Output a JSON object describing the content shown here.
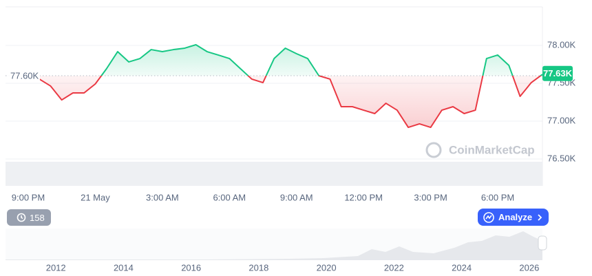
{
  "chart_data": [
    {
      "type": "line",
      "categories": [
        null,
        null,
        "9:00 PM",
        null,
        null,
        null,
        null,
        null,
        "21 May",
        null,
        null,
        null,
        null,
        null,
        "3:00 AM",
        null,
        null,
        null,
        null,
        null,
        "6:00 AM",
        null,
        null,
        null,
        null,
        null,
        "9:00 AM",
        null,
        null,
        null,
        null,
        null,
        "12:00 PM",
        null,
        null,
        null,
        null,
        null,
        "3:00 PM",
        null,
        null,
        null,
        null,
        null,
        "6:00 PM",
        null,
        null,
        null,
        null
      ],
      "values": [
        null,
        null,
        null,
        77555,
        77464,
        77280,
        77373,
        77373,
        77491,
        77691,
        77918,
        77782,
        77827,
        77945,
        77918,
        77945,
        77964,
        78009,
        77918,
        77873,
        77827,
        77691,
        77555,
        77509,
        77827,
        77964,
        77891,
        77827,
        77600,
        77555,
        77191,
        77191,
        77145,
        77100,
        77236,
        77145,
        76918,
        76964,
        76918,
        77145,
        77191,
        77100,
        77145,
        77827,
        77873,
        77736,
        77327,
        77509,
        77618
      ],
      "colors": {
        "up": "#16c784",
        "down": "#ea3943"
      },
      "baseline": {
        "value": 77600,
        "label": "77.60K"
      },
      "current_price": {
        "value": 77630,
        "label": "77.63K"
      },
      "ylim": [
        76500,
        78500
      ],
      "yticks": [
        {
          "value": 78000,
          "label": "78.00K"
        },
        {
          "value": 77500,
          "label": "77.50K"
        },
        {
          "value": 77000,
          "label": "77.00K"
        },
        {
          "value": 76500,
          "label": "76.50K"
        }
      ]
    }
  ],
  "navigator": {
    "xlim": [
      2010.51,
      2026.39
    ],
    "xticks": [
      2012,
      2014,
      2016,
      2018,
      2020,
      2022,
      2024,
      2026
    ]
  },
  "watermark": "CoinMarketCap",
  "history_button": {
    "label": "158"
  },
  "analyze_button": {
    "label": "Analyze"
  }
}
